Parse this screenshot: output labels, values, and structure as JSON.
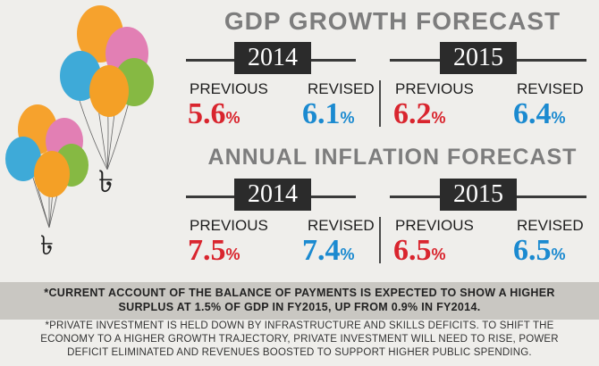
{
  "gdp": {
    "title": "GDP GROWTH FORECAST",
    "y2014": {
      "year": "2014",
      "previous_label": "PREVIOUS",
      "previous_value": "5.6",
      "revised_label": "REVISED",
      "revised_value": "6.1"
    },
    "y2015": {
      "year": "2015",
      "previous_label": "PREVIOUS",
      "previous_value": "6.2",
      "revised_label": "REVISED",
      "revised_value": "6.4"
    }
  },
  "inflation": {
    "title": "ANNUAL INFLATION FORECAST",
    "y2014": {
      "year": "2014",
      "previous_label": "PREVIOUS",
      "previous_value": "7.5",
      "revised_label": "REVISED",
      "revised_value": "7.4"
    },
    "y2015": {
      "year": "2015",
      "previous_label": "PREVIOUS",
      "previous_value": "6.5",
      "revised_label": "REVISED",
      "revised_value": "6.5"
    }
  },
  "percent_sign": "%",
  "notes": {
    "current_account_line1": "*CURRENT ACCOUNT OF THE BALANCE OF PAYMENTS IS EXPECTED TO SHOW A HIGHER",
    "current_account_line2": "SURPLUS AT 1.5% OF GDP IN FY2015, UP FROM 0.9% IN FY2014.",
    "private_investment_line1": "*PRIVATE INVESTMENT IS HELD DOWN BY INFRASTRUCTURE AND SKILLS DEFICITS. TO SHIFT THE",
    "private_investment_line2": "ECONOMY TO A HIGHER GROWTH TRAJECTORY, PRIVATE INVESTMENT WILL NEED TO RISE, POWER",
    "private_investment_line3": "DEFICIT ELIMINATED AND REVENUES BOOSTED TO SUPPORT HIGHER PUBLIC SPENDING."
  },
  "colors": {
    "previous": "#d9252e",
    "revised": "#1b8ad0",
    "title": "#7d7d7d",
    "year_box": "#2b2b2b"
  },
  "art": {
    "currency_symbol": "৳"
  }
}
